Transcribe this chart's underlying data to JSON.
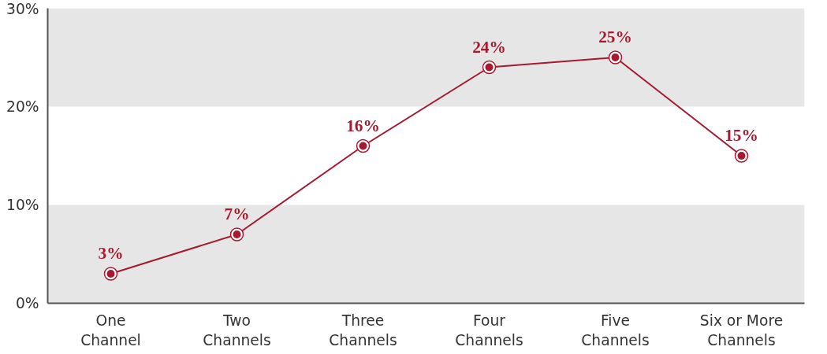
{
  "chart_data": {
    "type": "line",
    "categories": [
      "One\nChannel",
      "Two\nChannels",
      "Three\nChannels",
      "Four\nChannels",
      "Five\nChannels",
      "Six or More\nChannels"
    ],
    "series": [
      {
        "color": "#a6192e",
        "values": [
          3,
          7,
          16,
          24,
          25,
          15
        ],
        "value_labels": [
          "3%",
          "7%",
          "16%",
          "24%",
          "25%",
          "15%"
        ]
      }
    ],
    "ylim": [
      0,
      30
    ],
    "yticks": [
      {
        "value": 0,
        "label": "0%"
      },
      {
        "value": 10,
        "label": "10%"
      },
      {
        "value": 20,
        "label": "20%"
      },
      {
        "value": 30,
        "label": "30%"
      }
    ],
    "bands": [
      {
        "axis": "y",
        "from": 0,
        "to": 10,
        "color": "#e6e6e6"
      },
      {
        "axis": "y",
        "from": 20,
        "to": 30,
        "color": "#e6e6e6"
      }
    ],
    "marker": "circle",
    "grid": false,
    "line_style": "solid"
  }
}
